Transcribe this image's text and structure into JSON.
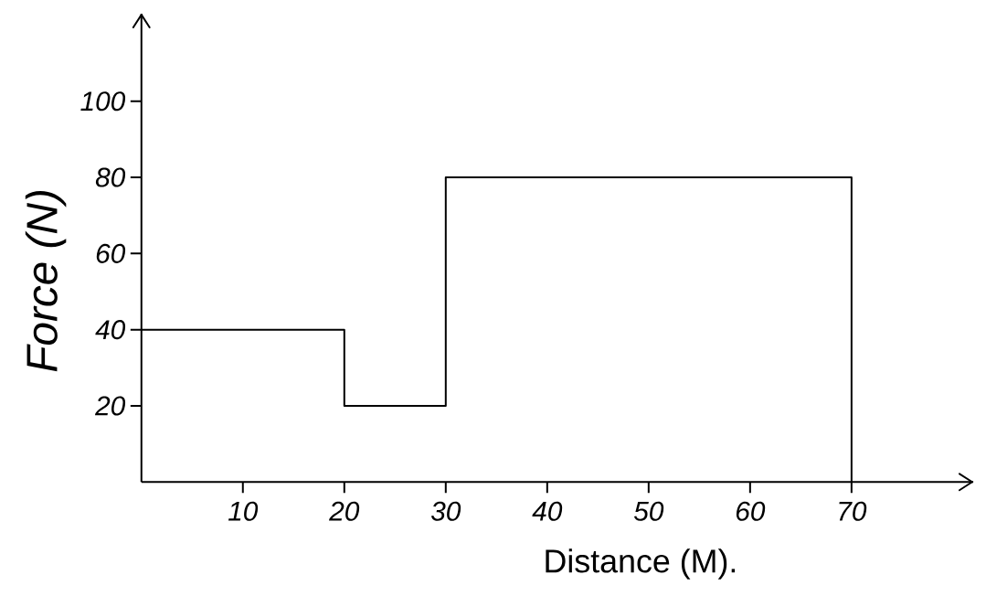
{
  "chart_data": {
    "type": "step",
    "xlabel": "Distance (M).",
    "ylabel": "Force (N)",
    "x": [
      0,
      20,
      30,
      70
    ],
    "values": [
      40,
      20,
      80,
      0
    ],
    "color": "#000000",
    "xlim": [
      0,
      82
    ],
    "ylim": [
      0,
      123
    ],
    "xticks": [
      10,
      20,
      30,
      40,
      50,
      60,
      70
    ],
    "yticks": [
      20,
      40,
      60,
      80,
      100
    ]
  }
}
